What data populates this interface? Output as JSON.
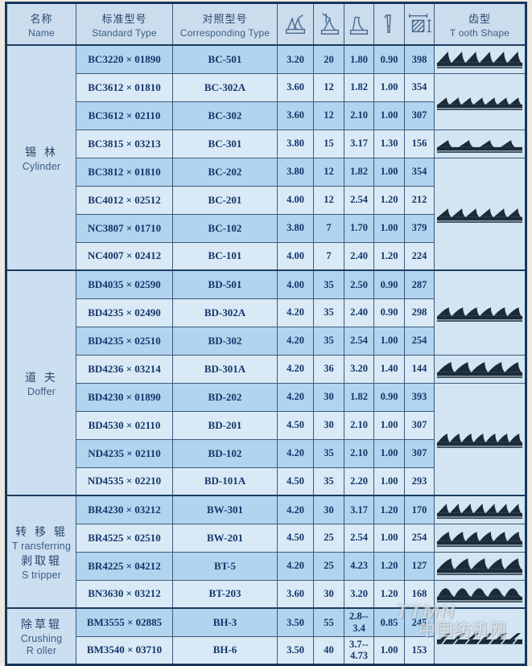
{
  "header": {
    "name_zh": "名称",
    "name_en": "Name",
    "standard_zh": "标准型号",
    "standard_en": "Standard Type",
    "corresponding_zh": "对照型号",
    "corresponding_en": "Corresponding Type",
    "tooth_zh": "齿型",
    "tooth_en": "T ooth Shape",
    "metric_icons": [
      "total-height-icon",
      "front-angle-icon",
      "tooth-depth-icon",
      "base-width-icon",
      "point-density-icon"
    ]
  },
  "colors": {
    "row_dark": "#b2d4ee",
    "row_light": "#d9eaf6",
    "header_bg": "#cbdcec",
    "grid": "#3c5a7a",
    "frame": "#17375c",
    "text": "#16356b",
    "tooth": "#1b2b38"
  },
  "sections": [
    {
      "name_lines": [
        {
          "text": "锡  林",
          "lang": "zh"
        },
        {
          "text": "Cylinder",
          "lang": "en"
        }
      ],
      "rows": [
        {
          "standard": "BC3220 × 01890",
          "corresponding": "BC-501",
          "values": [
            "3.20",
            "20",
            "1.80",
            "0.90",
            "398"
          ]
        },
        {
          "standard": "BC3612 × 01810",
          "corresponding": "BC-302A",
          "values": [
            "3.60",
            "12",
            "1.82",
            "1.00",
            "354"
          ]
        },
        {
          "standard": "BC3612 × 02110",
          "corresponding": "BC-302",
          "values": [
            "3.60",
            "12",
            "2.10",
            "1.00",
            "307"
          ]
        },
        {
          "standard": "BC3815 × 03213",
          "corresponding": "BC-301",
          "values": [
            "3.80",
            "15",
            "3.17",
            "1.30",
            "156"
          ]
        },
        {
          "standard": "BC3812 × 01810",
          "corresponding": "BC-202",
          "values": [
            "3.80",
            "12",
            "1.82",
            "1.00",
            "354"
          ]
        },
        {
          "standard": "BC4012 × 02512",
          "corresponding": "BC-201",
          "values": [
            "4.00",
            "12",
            "2.54",
            "1.20",
            "212"
          ]
        },
        {
          "standard": "NC3807 × 01710",
          "corresponding": "BC-102",
          "values": [
            "3.80",
            "7",
            "1.70",
            "1.00",
            "379"
          ]
        },
        {
          "standard": "NC4007 × 02412",
          "corresponding": "BC-101",
          "values": [
            "4.00",
            "7",
            "2.40",
            "1.20",
            "224"
          ]
        }
      ],
      "tooth_cells": [
        {
          "row": 0,
          "span": 1,
          "teeth": 6,
          "h": 14,
          "style": "sharp"
        },
        {
          "row": 1,
          "span": 2,
          "teeth": 7,
          "h": 9,
          "style": "sharp"
        },
        {
          "row": 3,
          "span": 1,
          "teeth": 4,
          "h": 9,
          "style": "wide"
        },
        {
          "row": 4,
          "span": 4,
          "teeth": 6,
          "h": 11,
          "style": "sharp"
        }
      ]
    },
    {
      "name_lines": [
        {
          "text": "道  夫",
          "lang": "zh"
        },
        {
          "text": "Doffer",
          "lang": "en"
        }
      ],
      "rows": [
        {
          "standard": "BD4035 × 02590",
          "corresponding": "BD-501",
          "values": [
            "4.00",
            "35",
            "2.50",
            "0.90",
            "287"
          ]
        },
        {
          "standard": "BD4235 × 02490",
          "corresponding": "BD-302A",
          "values": [
            "4.20",
            "35",
            "2.40",
            "0.90",
            "298"
          ]
        },
        {
          "standard": "BD4235 × 02510",
          "corresponding": "BD-302",
          "values": [
            "4.20",
            "35",
            "2.54",
            "1.00",
            "254"
          ]
        },
        {
          "standard": "BD4236 × 03214",
          "corresponding": "BD-301A",
          "values": [
            "4.20",
            "36",
            "3.20",
            "1.40",
            "144"
          ]
        },
        {
          "standard": "BD4230 × 01890",
          "corresponding": "BD-202",
          "values": [
            "4.20",
            "30",
            "1.82",
            "0.90",
            "393"
          ]
        },
        {
          "standard": "BD4530 × 02110",
          "corresponding": "BD-201",
          "values": [
            "4.50",
            "30",
            "2.10",
            "1.00",
            "307"
          ]
        },
        {
          "standard": "ND4235 × 02110",
          "corresponding": "BD-102",
          "values": [
            "4.20",
            "35",
            "2.10",
            "1.00",
            "307"
          ]
        },
        {
          "standard": "ND4535 × 02210",
          "corresponding": "BD-101A",
          "values": [
            "4.50",
            "35",
            "2.20",
            "1.00",
            "293"
          ]
        }
      ],
      "tooth_cells": [
        {
          "row": 0,
          "span": 3,
          "teeth": 6,
          "h": 11,
          "style": "curve"
        },
        {
          "row": 3,
          "span": 1,
          "teeth": 5,
          "h": 13,
          "style": "curve"
        },
        {
          "row": 4,
          "span": 4,
          "teeth": 7,
          "h": 11,
          "style": "curve"
        }
      ]
    },
    {
      "name_lines": [
        {
          "text": "转 移 辊",
          "lang": "zh"
        },
        {
          "text": "T ransferring",
          "lang": "en"
        },
        {
          "text": "剥取辊",
          "lang": "zh"
        },
        {
          "text": "S tripper",
          "lang": "en"
        }
      ],
      "rows": [
        {
          "standard": "BR4230 × 03212",
          "corresponding": "BW-301",
          "values": [
            "4.20",
            "30",
            "3.17",
            "1.20",
            "170"
          ]
        },
        {
          "standard": "BR4525 × 02510",
          "corresponding": "BW-201",
          "values": [
            "4.50",
            "25",
            "2.54",
            "1.00",
            "254"
          ]
        },
        {
          "standard": "BR4225 × 04212",
          "corresponding": "BT-5",
          "values": [
            "4.20",
            "25",
            "4.23",
            "1.20",
            "127"
          ]
        },
        {
          "standard": "BN3630 × 03212",
          "corresponding": "BT-203",
          "values": [
            "3.60",
            "30",
            "3.20",
            "1.20",
            "168"
          ]
        }
      ],
      "tooth_cells": [
        {
          "row": 0,
          "span": 1,
          "teeth": 7,
          "h": 12,
          "style": "sharp"
        },
        {
          "row": 1,
          "span": 1,
          "teeth": 6,
          "h": 12,
          "style": "curve"
        },
        {
          "row": 2,
          "span": 1,
          "teeth": 5,
          "h": 14,
          "style": "curve"
        },
        {
          "row": 3,
          "span": 1,
          "teeth": 5,
          "h": 10,
          "style": "wave"
        }
      ]
    },
    {
      "name_lines": [
        {
          "text": "除草辊",
          "lang": "zh"
        },
        {
          "text": "Crushing",
          "lang": "en"
        },
        {
          "text": "R oller",
          "lang": "en"
        }
      ],
      "rows": [
        {
          "standard": "BM3555 × 02885",
          "corresponding": "BH-3",
          "values": [
            "3.50",
            "55",
            "2.8--3.4",
            "0.85",
            "245"
          ]
        },
        {
          "standard": "BM3540 × 03710",
          "corresponding": "BH-6",
          "values": [
            "3.50",
            "40",
            "3.7--4.73",
            "1.00",
            "153"
          ]
        }
      ],
      "tooth_cells": [
        {
          "row": 0,
          "span": 2,
          "teeth": 6,
          "h": 8,
          "style": "slash"
        }
      ]
    }
  ],
  "watermark": {
    "line1": "TTMN",
    "line2": "中国纺机网"
  }
}
